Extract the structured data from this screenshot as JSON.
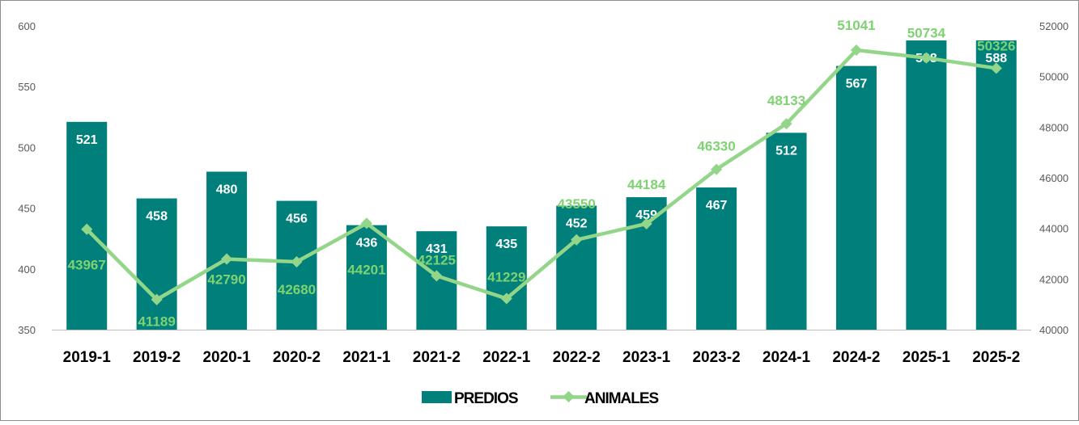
{
  "chart_data": {
    "type": "bar",
    "categories": [
      "2019-1",
      "2019-2",
      "2020-1",
      "2020-2",
      "2021-1",
      "2021-2",
      "2022-1",
      "2022-2",
      "2023-1",
      "2023-2",
      "2024-1",
      "2024-2",
      "2025-1",
      "2025-2"
    ],
    "series": [
      {
        "name": "PREDIOS",
        "type": "bar",
        "axis": "left",
        "values": [
          521,
          458,
          480,
          456,
          436,
          431,
          435,
          452,
          459,
          467,
          512,
          567,
          588,
          588
        ]
      },
      {
        "name": "ANIMALES",
        "type": "line",
        "axis": "right",
        "values": [
          43967,
          41189,
          42790,
          42680,
          44201,
          42125,
          41229,
          43550,
          44184,
          46330,
          48133,
          51041,
          50734,
          50326
        ]
      }
    ],
    "left_axis": {
      "min": 350,
      "max": 600,
      "ticks": [
        "350",
        "400",
        "450",
        "500",
        "550",
        "600"
      ]
    },
    "right_axis": {
      "min": 40000,
      "max": 52000,
      "ticks": [
        "40000",
        "42000",
        "44000",
        "46000",
        "48000",
        "50000",
        "52000"
      ]
    },
    "grid": false,
    "legend": {
      "position": "bottom",
      "items": [
        "PREDIOS",
        "ANIMALES"
      ]
    },
    "colors": {
      "bar": "#007f7b",
      "line": "#93d689",
      "line_label": "#7fd272"
    }
  }
}
